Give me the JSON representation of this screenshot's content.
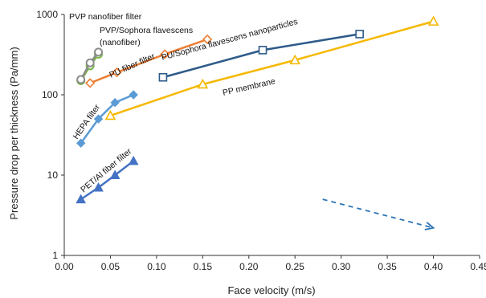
{
  "chart_data": {
    "type": "scatter",
    "xlabel": "Face velocity (m/s)",
    "ylabel": "Pressure drop per thickness (Pa/mm)",
    "xlim": [
      0,
      0.45
    ],
    "ylim": [
      1,
      1000
    ],
    "yscale": "log",
    "grid": false,
    "x_ticks": [
      "0.00",
      "0.05",
      "0.10",
      "0.15",
      "0.20",
      "0.25",
      "0.30",
      "0.35",
      "0.40",
      "0.45"
    ],
    "y_ticks": [
      "1",
      "10",
      "100",
      "1000"
    ],
    "series": [
      {
        "name": "PVP nanofiber filter",
        "color": "#7ab648",
        "marker": "circle",
        "x": [
          0.018,
          0.028,
          0.037
        ],
        "y": [
          150,
          230,
          320
        ]
      },
      {
        "name": "PVP/Sophora flavescens (nanofiber)",
        "color": "#8c8c8c",
        "marker": "circle",
        "x": [
          0.018,
          0.028,
          0.037
        ],
        "y": [
          155,
          250,
          340
        ]
      },
      {
        "name": "PU fiber filter",
        "color": "#ed7d31",
        "marker": "diamond-open",
        "x": [
          0.028,
          0.057,
          0.109,
          0.155
        ],
        "y": [
          140,
          190,
          320,
          490
        ]
      },
      {
        "name": "PU/Sophora flavescens nanoparticles",
        "color": "#2e5b8a",
        "marker": "square-open",
        "x": [
          0.107,
          0.215,
          0.32
        ],
        "y": [
          165,
          360,
          570
        ]
      },
      {
        "name": "PP membrane",
        "color": "#f5b800",
        "marker": "triangle-open",
        "x": [
          0.05,
          0.15,
          0.25,
          0.4
        ],
        "y": [
          55,
          135,
          270,
          820
        ]
      },
      {
        "name": "HEPA filter",
        "color": "#5b9bd5",
        "marker": "diamond",
        "x": [
          0.018,
          0.037,
          0.055,
          0.075
        ],
        "y": [
          25,
          50,
          80,
          100
        ]
      },
      {
        "name": "PET/Al fiber filter",
        "color": "#4472c4",
        "marker": "triangle",
        "x": [
          0.018,
          0.037,
          0.055,
          0.075
        ],
        "y": [
          5,
          7,
          10,
          15
        ]
      }
    ],
    "annotations": [
      {
        "text": "PVP nanofiber filter"
      },
      {
        "text": "PVP/Sophora flavescens"
      },
      {
        "text": "(nanofiber)"
      },
      {
        "text": "PU fiber filter"
      },
      {
        "text": "PU/Sophora flavescens nanoparticles"
      },
      {
        "text": "PP membrane"
      },
      {
        "text": "HEPA filter"
      },
      {
        "text": "PET/Al fiber filter"
      }
    ],
    "trend_arrow": {
      "from": [
        0.28,
        5
      ],
      "to": [
        0.4,
        2.2
      ],
      "color": "#2e75b6",
      "style": "dashed"
    }
  }
}
